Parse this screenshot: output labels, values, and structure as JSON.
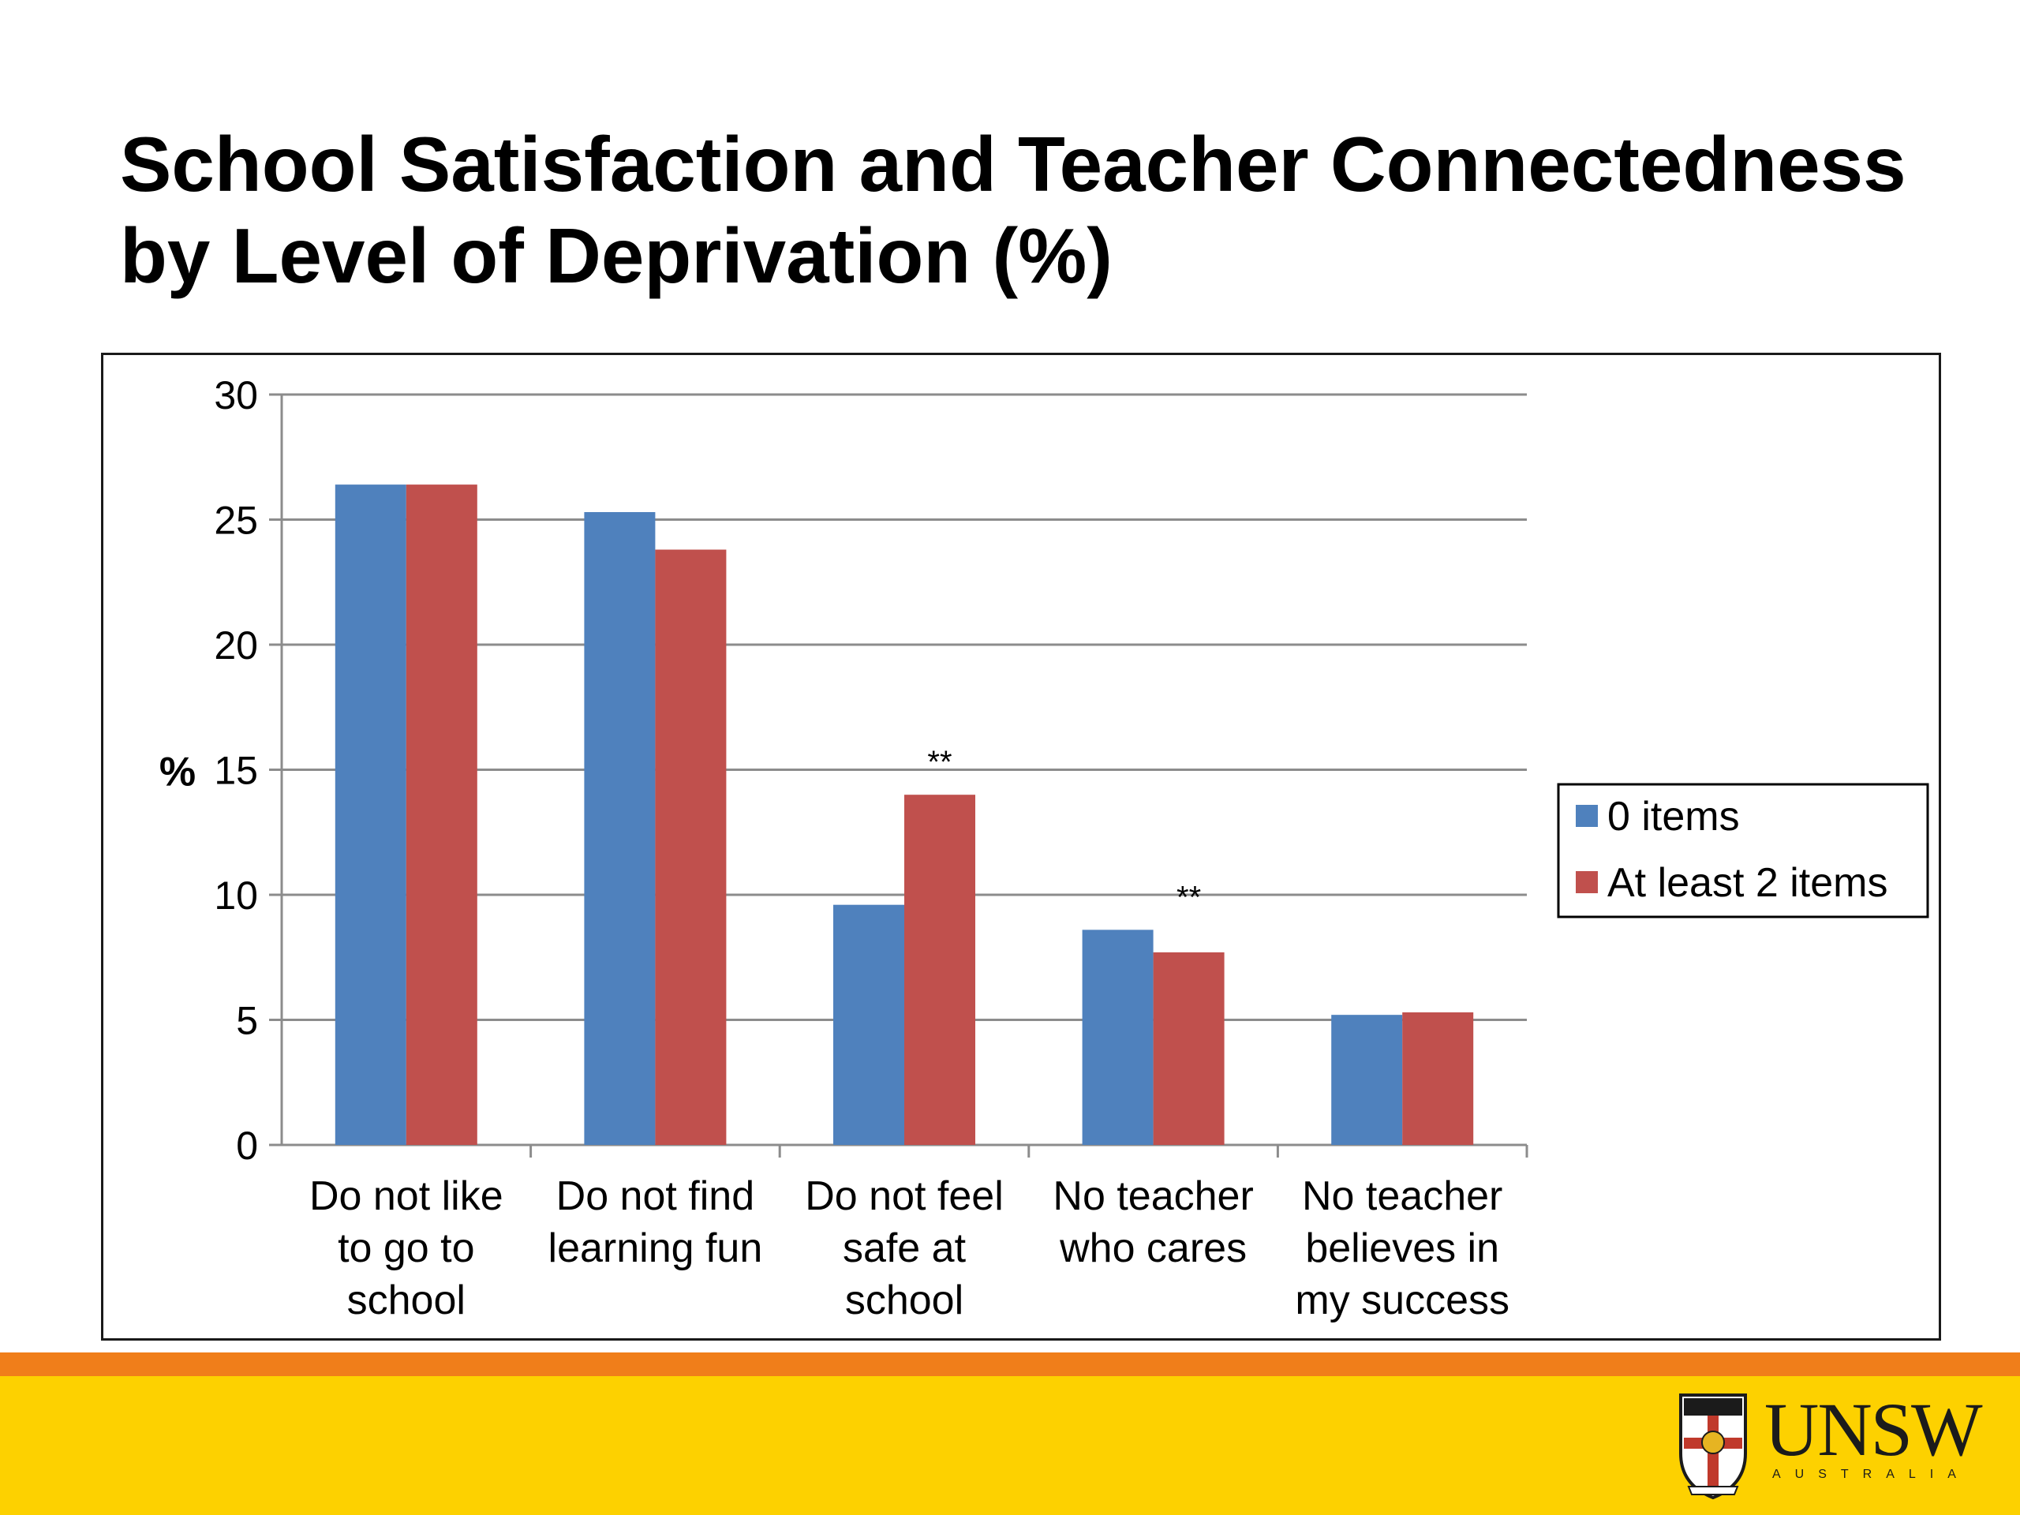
{
  "slide": {
    "title_line1": "School Satisfaction and Teacher Connectedness",
    "title_line2": "by Level of Deprivation (%)"
  },
  "chart_data": {
    "type": "bar",
    "categories": [
      [
        "Do not like",
        "to go to",
        "school"
      ],
      [
        "Do not find",
        "learning fun"
      ],
      [
        "Do not feel",
        "safe at",
        "school"
      ],
      [
        "No teacher",
        "who cares"
      ],
      [
        "No teacher",
        "believes in",
        "my success"
      ]
    ],
    "series": [
      {
        "name": "0 items",
        "color": "#4f81bd",
        "values": [
          26.4,
          25.3,
          9.6,
          8.6,
          5.2
        ]
      },
      {
        "name": "At least 2 items",
        "color": "#c0504d",
        "values": [
          26.4,
          23.8,
          14.0,
          7.7,
          5.3
        ]
      }
    ],
    "annotations": [
      "",
      "",
      "**",
      "**",
      ""
    ],
    "ylabel": "%",
    "ylim": [
      0,
      30
    ],
    "yticks": [
      0,
      5,
      10,
      15,
      20,
      25,
      30
    ],
    "grid": true,
    "legend": "right"
  },
  "footer": {
    "logo_text": "UNSW",
    "logo_subtext": "AUSTRALIA"
  }
}
